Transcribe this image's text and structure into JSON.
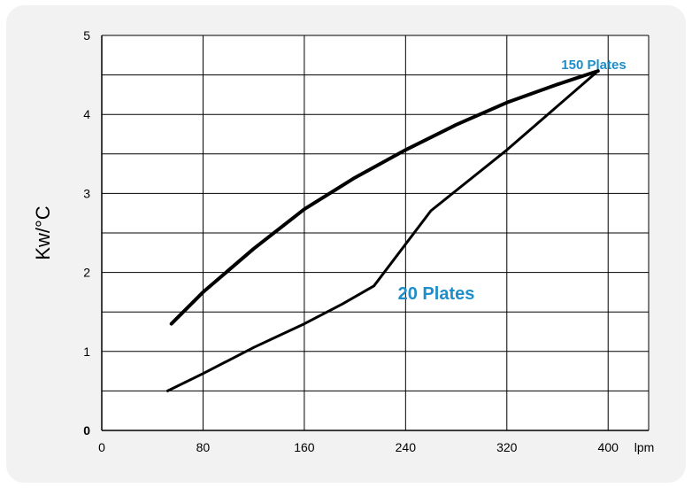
{
  "chart_data": {
    "type": "line",
    "ylabel": "Kw/°C",
    "xunit": "lpm",
    "xlim": [
      0,
      400
    ],
    "ylim": [
      0,
      5
    ],
    "x_ticks": [
      "0",
      "80",
      "160",
      "240",
      "320",
      "400"
    ],
    "y_ticks": [
      "0",
      "1",
      "2",
      "3",
      "4",
      "5"
    ],
    "grid": true,
    "series": [
      {
        "name": "150 Plates",
        "x": [
          55,
          80,
          120,
          160,
          200,
          240,
          280,
          320,
          360,
          392
        ],
        "y": [
          1.35,
          1.75,
          2.3,
          2.8,
          3.2,
          3.55,
          3.87,
          4.15,
          4.38,
          4.55
        ]
      },
      {
        "name": "20 Plates",
        "x": [
          52,
          80,
          120,
          160,
          190,
          215,
          260,
          320,
          392
        ],
        "y": [
          0.5,
          0.72,
          1.05,
          1.35,
          1.6,
          1.83,
          2.78,
          3.55,
          4.55
        ]
      }
    ],
    "annotations": [
      {
        "text": "150 Plates",
        "color": "#1d8ec9"
      },
      {
        "text": "20 Plates",
        "color": "#1d8ec9"
      }
    ]
  }
}
